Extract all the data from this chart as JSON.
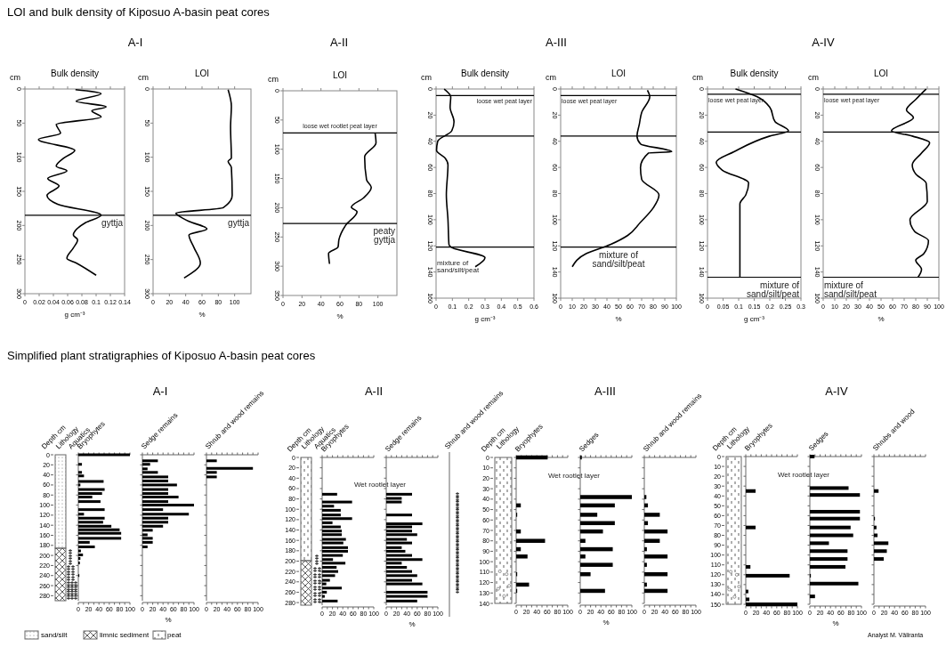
{
  "chart_data": [
    {
      "type": "other",
      "title": "LOI and bulk density of Kiposuo A-basin peat cores"
    },
    {
      "type": "other",
      "title": "A-I"
    },
    {
      "type": "other",
      "title": "A-II"
    },
    {
      "type": "other",
      "title": "A-III"
    },
    {
      "type": "other",
      "title": "A-IV"
    },
    {
      "type": "line",
      "title": "Bulk density",
      "xlabel": "g cm⁻³",
      "ylabel": "cm",
      "color": "#000000",
      "x": [
        0.071,
        0.107,
        0.072,
        0.114,
        0.094,
        0.107,
        0.044,
        0.05,
        0.019,
        0.07,
        0.055,
        0.044,
        0.059,
        0.032,
        0.048,
        0.031,
        0.046,
        0.107,
        0.085,
        0.068,
        0.074,
        0.068,
        0.059,
        0.072,
        0.1
      ],
      "values": [
        1,
        7,
        18,
        26,
        32,
        41,
        52,
        65,
        74,
        90,
        101,
        113,
        120,
        131,
        142,
        156,
        169,
        185,
        196,
        214,
        221,
        233,
        248,
        255,
        273
      ],
      "xlim": [
        0,
        0.14
      ],
      "xticks": [
        0,
        0.02,
        0.04,
        0.06,
        0.08,
        0.1,
        0.12,
        0.14
      ],
      "ylim": [
        300,
        0
      ],
      "yticks": [
        0,
        50,
        100,
        150,
        200,
        250,
        300
      ],
      "ref_lines": [
        {
          "axis": "y",
          "value": 185,
          "label": "gyttja"
        }
      ]
    },
    {
      "type": "line",
      "title": "LOI",
      "xlabel": "%",
      "ylabel": "cm",
      "color": "#000000",
      "x": [
        92,
        96,
        95,
        96,
        92,
        96,
        97,
        86,
        28,
        33,
        44,
        66,
        44,
        50,
        58,
        38
      ],
      "values": [
        1,
        25,
        56,
        101,
        106,
        115,
        156,
        174,
        182,
        187,
        194,
        205,
        214,
        232,
        255,
        277
      ],
      "xlim": [
        0,
        120
      ],
      "xticks": [
        0,
        20,
        40,
        60,
        80,
        100
      ],
      "ylim": [
        300,
        0
      ],
      "yticks": [
        0,
        50,
        100,
        150,
        200,
        250,
        300
      ],
      "ref_lines": [
        {
          "axis": "y",
          "value": 185,
          "label": "gyttja"
        }
      ]
    },
    {
      "type": "line",
      "title": "LOI",
      "xlabel": "%",
      "ylabel": "cm",
      "color": "#000000",
      "x": [
        97,
        98,
        86,
        88,
        93,
        85,
        72,
        78,
        66,
        59,
        58,
        48,
        49
      ],
      "values": [
        72,
        89,
        113,
        152,
        165,
        183,
        199,
        207,
        230,
        254,
        267,
        278,
        296
      ],
      "xlim": [
        0,
        120
      ],
      "xticks": [
        0,
        20,
        40,
        60,
        80,
        100
      ],
      "ylim": [
        350,
        0
      ],
      "yticks": [
        0,
        50,
        100,
        150,
        200,
        250,
        300,
        350
      ],
      "ref_lines": [
        {
          "axis": "y",
          "value": 72,
          "label": "loose wet rootlet peat layer"
        },
        {
          "axis": "y",
          "value": 227,
          "label": "peaty gyttja"
        }
      ]
    },
    {
      "type": "line",
      "title": "Bulk density",
      "xlabel": "g cm⁻³",
      "ylabel": "cm",
      "color": "#000000",
      "x": [
        0.05,
        0.09,
        0.086,
        0.11,
        0.096,
        0.01,
        0.003,
        0.056,
        0.073,
        0.063,
        0.073,
        0.079,
        0.092,
        0.3,
        0.24
      ],
      "values": [
        0,
        6,
        14,
        25,
        32,
        40,
        47,
        53,
        58,
        81,
        100,
        119,
        121,
        129,
        136
      ],
      "xlim": [
        0,
        0.6
      ],
      "xticks": [
        0,
        0.1,
        0.2,
        0.3,
        0.4,
        0.5,
        0.6
      ],
      "ylim": [
        160,
        0
      ],
      "yticks": [
        0,
        20,
        40,
        60,
        80,
        100,
        120,
        140,
        160
      ],
      "ref_lines": [
        {
          "axis": "y",
          "value": 5,
          "label": "loose wet peat layer"
        },
        {
          "axis": "y",
          "value": 36
        },
        {
          "axis": "y",
          "value": 121,
          "label": "mixture of sand/silt/peat"
        }
      ]
    },
    {
      "type": "line",
      "title": "LOI",
      "xlabel": "%",
      "ylabel": "cm",
      "color": "#000000",
      "x": [
        75,
        77,
        70,
        68,
        66,
        69,
        96,
        76,
        69,
        70,
        85,
        80,
        69,
        58,
        43,
        22,
        10
      ],
      "values": [
        1,
        6,
        18,
        27,
        36,
        42,
        48,
        49,
        60,
        69,
        81,
        91,
        102,
        112,
        119,
        126,
        136
      ],
      "xlim": [
        0,
        100
      ],
      "xticks": [
        0,
        10,
        20,
        30,
        40,
        50,
        60,
        70,
        80,
        90,
        100
      ],
      "ylim": [
        160,
        0
      ],
      "yticks": [
        0,
        20,
        40,
        60,
        80,
        100,
        120,
        140,
        160
      ],
      "ref_lines": [
        {
          "axis": "y",
          "value": 5,
          "label": "loose wet peat layer"
        },
        {
          "axis": "y",
          "value": 36
        },
        {
          "axis": "y",
          "value": 121,
          "label": "mixture of sand/silt/peat"
        }
      ]
    },
    {
      "type": "line",
      "title": "Bulk density",
      "xlabel": "g cm⁻³",
      "ylabel": "cm",
      "color": "#000000",
      "x": [
        0.09,
        0.16,
        0.2,
        0.217,
        0.26,
        0.2,
        0.085,
        0.028,
        0.047,
        0.132,
        0.123,
        0.104,
        0.104
      ],
      "values": [
        0,
        6,
        14,
        25,
        32,
        36,
        48,
        56,
        62,
        72,
        81,
        88,
        144
      ],
      "xlim": [
        0,
        0.3
      ],
      "xticks": [
        0,
        0.05,
        0.1,
        0.15,
        0.2,
        0.25,
        0.3
      ],
      "ylim": [
        160,
        0
      ],
      "yticks": [
        0,
        20,
        40,
        60,
        80,
        100,
        120,
        140,
        160
      ],
      "ref_lines": [
        {
          "axis": "y",
          "value": 4,
          "label": "loose wet peat layer"
        },
        {
          "axis": "y",
          "value": 33
        },
        {
          "axis": "y",
          "value": 144,
          "label": "mixture of sand/silt/peat"
        }
      ]
    },
    {
      "type": "line",
      "title": "LOI",
      "xlabel": "%",
      "ylabel": "cm",
      "color": "#000000",
      "x": [
        89,
        80,
        72,
        78,
        59,
        77,
        92,
        85,
        77,
        80,
        89,
        90,
        75,
        79,
        91,
        87,
        80,
        85,
        82
      ],
      "values": [
        0,
        8,
        16,
        22,
        32,
        36,
        41,
        49,
        58,
        65,
        72,
        86,
        100,
        109,
        116,
        126,
        131,
        138,
        144
      ],
      "xlim": [
        0,
        100
      ],
      "xticks": [
        0,
        10,
        20,
        30,
        40,
        50,
        60,
        70,
        80,
        90,
        100
      ],
      "ylim": [
        160,
        0
      ],
      "yticks": [
        0,
        20,
        40,
        60,
        80,
        100,
        120,
        140,
        160
      ],
      "ref_lines": [
        {
          "axis": "y",
          "value": 4,
          "label": "loose wet peat layer"
        },
        {
          "axis": "y",
          "value": 33
        },
        {
          "axis": "y",
          "value": 144,
          "label": "mixture of sand/silt/peat"
        }
      ]
    },
    {
      "type": "other",
      "title": "Simplified plant stratigraphies of Kiposuo A-basin peat cores"
    },
    {
      "type": "other",
      "title": "A-I"
    },
    {
      "type": "other",
      "title": "A-II"
    },
    {
      "type": "other",
      "title": "A-III"
    },
    {
      "type": "other",
      "title": "A-IV"
    },
    {
      "type": "other",
      "annotations": [
        "Lithology",
        "Aquatics"
      ]
    },
    {
      "type": "bar",
      "orientation": "horizontal",
      "title": "Bryophytes",
      "ylabel": "Depth cm",
      "color": "#000000",
      "x": [
        0,
        19,
        35,
        42,
        53,
        60,
        69,
        77,
        84,
        93,
        109,
        118,
        126,
        134,
        142,
        149,
        156,
        166,
        174,
        183,
        191,
        199,
        206,
        215,
        240
      ],
      "values": [
        100,
        7,
        7,
        11,
        49,
        4,
        51,
        46,
        27,
        43,
        51,
        11,
        51,
        48,
        64,
        80,
        83,
        83,
        22,
        32,
        5,
        9,
        4,
        3,
        2
      ],
      "xlim": [
        0,
        100
      ],
      "xticks": [
        0,
        {
          "value": 10,
          "label": null
        },
        20,
        {
          "value": 30,
          "label": null
        },
        40,
        {
          "value": 50,
          "label": null
        },
        60,
        {
          "value": 70,
          "label": null
        },
        80,
        {
          "value": 90,
          "label": null
        },
        100
      ],
      "ylim": [
        290,
        0
      ],
      "yticks": [
        0,
        20,
        40,
        60,
        80,
        100,
        120,
        140,
        160,
        180,
        200,
        220,
        240,
        260,
        280
      ]
    },
    {
      "type": "bar",
      "orientation": "horizontal",
      "title": "Sedge remains",
      "xlabel": "%",
      "tick_labels": "x",
      "yticks": [
        0,
        20,
        40,
        60,
        80,
        100,
        120,
        140,
        160,
        180,
        200,
        220,
        240,
        260,
        280
      ],
      "color": "#000000",
      "x": [
        12,
        19,
        28,
        35,
        44,
        52,
        60,
        69,
        77,
        84,
        93,
        100,
        109,
        118,
        126,
        134,
        142,
        150,
        159,
        166,
        174,
        183
      ],
      "values": [
        30,
        15,
        10,
        30,
        50,
        50,
        67,
        50,
        50,
        70,
        50,
        100,
        40,
        90,
        50,
        50,
        40,
        20,
        10,
        20,
        20,
        10
      ],
      "xlim": [
        0,
        100
      ],
      "xticks": [
        0,
        {
          "value": 10,
          "label": null
        },
        20,
        {
          "value": 30,
          "label": null
        },
        40,
        {
          "value": 50,
          "label": null
        },
        60,
        {
          "value": 70,
          "label": null
        },
        80,
        {
          "value": 90,
          "label": null
        },
        100
      ],
      "ylim": [
        290,
        0
      ]
    },
    {
      "type": "bar",
      "orientation": "horizontal",
      "title": "Shrub and wood remains",
      "tick_labels": "x",
      "yticks": [
        0,
        20,
        40,
        60,
        80,
        100,
        120,
        140,
        160,
        180,
        200,
        220,
        240,
        260,
        280
      ],
      "color": "#000000",
      "x": [
        12,
        27,
        35,
        44
      ],
      "values": [
        20,
        90,
        20,
        20
      ],
      "xlim": [
        0,
        100
      ],
      "xticks": [
        0,
        {
          "value": 10,
          "label": null
        },
        20,
        {
          "value": 30,
          "label": null
        },
        40,
        {
          "value": 50,
          "label": null
        },
        60,
        {
          "value": 70,
          "label": null
        },
        80,
        {
          "value": 90,
          "label": null
        },
        100
      ],
      "ylim": [
        290,
        0
      ]
    },
    {
      "type": "other",
      "annotations": [
        "Lithology",
        "Aquatics",
        "Shrub and wood remains"
      ]
    },
    {
      "type": "bar",
      "orientation": "horizontal",
      "title": "Bryophytes",
      "ylabel": "Depth cm",
      "annotations": [
        "Wet rootlet layer"
      ],
      "color": "#000000",
      "x": [
        71,
        86,
        94,
        102,
        111,
        118,
        126,
        134,
        142,
        149,
        158,
        165,
        174,
        181,
        189,
        197,
        204,
        212,
        220,
        228,
        237,
        244,
        252,
        260,
        268,
        277
      ],
      "values": [
        29,
        58,
        23,
        36,
        36,
        58,
        20,
        36,
        38,
        38,
        46,
        41,
        50,
        50,
        40,
        21,
        45,
        28,
        31,
        25,
        15,
        8,
        38,
        9,
        5,
        30
      ],
      "xlim": [
        0,
        100
      ],
      "xticks": [
        0,
        {
          "value": 10,
          "label": null
        },
        20,
        {
          "value": 30,
          "label": null
        },
        40,
        {
          "value": 50,
          "label": null
        },
        60,
        {
          "value": 70,
          "label": null
        },
        80,
        {
          "value": 90,
          "label": null
        },
        100
      ],
      "ylim": [
        285,
        0
      ],
      "yticks": [
        0,
        20,
        40,
        60,
        80,
        100,
        120,
        140,
        160,
        180,
        200,
        220,
        240,
        260,
        280
      ]
    },
    {
      "type": "bar",
      "orientation": "horizontal",
      "title": "Sedge remains",
      "xlabel": "%",
      "tick_labels": "x",
      "yticks": [
        0,
        20,
        40,
        60,
        80,
        100,
        120,
        140,
        160,
        180,
        200,
        220,
        240,
        260,
        280
      ],
      "color": "#000000",
      "x": [
        71,
        79,
        86,
        111,
        128,
        134,
        142,
        149,
        158,
        165,
        174,
        181,
        189,
        197,
        204,
        212,
        220,
        228,
        237,
        244,
        260,
        268,
        277
      ],
      "values": [
        50,
        30,
        30,
        50,
        70,
        50,
        50,
        60,
        40,
        50,
        30,
        37,
        50,
        70,
        30,
        40,
        50,
        60,
        50,
        70,
        80,
        80,
        60
      ],
      "xlim": [
        0,
        100
      ],
      "xticks": [
        0,
        {
          "value": 10,
          "label": null
        },
        20,
        {
          "value": 30,
          "label": null
        },
        40,
        {
          "value": 50,
          "label": null
        },
        60,
        {
          "value": 70,
          "label": null
        },
        80,
        {
          "value": 90,
          "label": null
        },
        100
      ],
      "ylim": [
        285,
        0
      ]
    },
    {
      "type": "other",
      "annotations": [
        "Lithology"
      ]
    },
    {
      "type": "bar",
      "orientation": "horizontal",
      "title": "Bryophytes",
      "ylabel": "Depth cm",
      "annotations": [
        "Wet rootlet layer"
      ],
      "color": "#000000",
      "x": [
        0,
        46,
        55,
        71,
        80,
        88,
        95,
        112,
        122,
        128
      ],
      "values": [
        61,
        9,
        2,
        9,
        56,
        9,
        22,
        2,
        25,
        2
      ],
      "xlim": [
        0,
        100
      ],
      "xticks": [
        0,
        {
          "value": 10,
          "label": null
        },
        20,
        {
          "value": 30,
          "label": null
        },
        40,
        {
          "value": 50,
          "label": null
        },
        60,
        {
          "value": 70,
          "label": null
        },
        80,
        {
          "value": 90,
          "label": null
        },
        100
      ],
      "ylim": [
        140,
        0
      ],
      "yticks": [
        0,
        10,
        20,
        30,
        40,
        50,
        60,
        70,
        80,
        90,
        100,
        110,
        120,
        130,
        140
      ]
    },
    {
      "type": "bar",
      "orientation": "horizontal",
      "title": "Sedges",
      "xlabel": "%",
      "tick_labels": "x",
      "yticks": [
        0,
        10,
        20,
        30,
        40,
        50,
        60,
        70,
        80,
        90,
        100,
        110,
        120,
        130,
        140
      ],
      "color": "#000000",
      "x": [
        0,
        38,
        46,
        55,
        63,
        71,
        80,
        88,
        95,
        103,
        112,
        128
      ],
      "values": [
        3,
        100,
        67,
        33,
        67,
        44,
        10,
        63,
        10,
        63,
        20,
        48
      ],
      "xlim": [
        0,
        100
      ],
      "xticks": [
        0,
        {
          "value": 10,
          "label": null
        },
        20,
        {
          "value": 30,
          "label": null
        },
        40,
        {
          "value": 50,
          "label": null
        },
        60,
        {
          "value": 70,
          "label": null
        },
        80,
        {
          "value": 90,
          "label": null
        },
        100
      ],
      "ylim": [
        140,
        0
      ]
    },
    {
      "type": "bar",
      "orientation": "horizontal",
      "title": "Shrub and wood remains",
      "tick_labels": "x",
      "yticks": [
        0,
        10,
        20,
        30,
        40,
        50,
        60,
        70,
        80,
        90,
        100,
        110,
        120,
        130,
        140
      ],
      "color": "#000000",
      "x": [
        38,
        46,
        55,
        63,
        71,
        80,
        88,
        95,
        103,
        112,
        122,
        128
      ],
      "values": [
        4,
        7,
        30,
        7,
        45,
        30,
        5,
        45,
        5,
        45,
        5,
        45
      ],
      "xlim": [
        0,
        100
      ],
      "xticks": [
        0,
        {
          "value": 10,
          "label": null
        },
        20,
        {
          "value": 30,
          "label": null
        },
        40,
        {
          "value": 50,
          "label": null
        },
        60,
        {
          "value": 70,
          "label": null
        },
        80,
        {
          "value": 90,
          "label": null
        },
        100
      ],
      "ylim": [
        140,
        0
      ]
    },
    {
      "type": "other",
      "annotations": [
        "Lithology"
      ]
    },
    {
      "type": "bar",
      "orientation": "horizontal",
      "title": "Bryophytes",
      "ylabel": "Depth cm",
      "annotations": [
        "Wet rootlet layer"
      ],
      "color": "#000000",
      "x": [
        35,
        72,
        112,
        121,
        137,
        145,
        150
      ],
      "values": [
        19,
        19,
        9,
        85,
        5,
        7,
        100
      ],
      "xlim": [
        0,
        100
      ],
      "xticks": [
        0,
        {
          "value": 10,
          "label": null
        },
        20,
        {
          "value": 30,
          "label": null
        },
        40,
        {
          "value": 50,
          "label": null
        },
        60,
        {
          "value": 70,
          "label": null
        },
        80,
        {
          "value": 90,
          "label": null
        },
        100
      ],
      "ylim": [
        150,
        0
      ],
      "yticks": [
        0,
        10,
        20,
        30,
        40,
        50,
        60,
        70,
        80,
        90,
        100,
        110,
        120,
        130,
        140,
        150
      ]
    },
    {
      "type": "bar",
      "orientation": "horizontal",
      "title": "Sedges",
      "xlabel": "%",
      "tick_labels": "x",
      "yticks": [
        0,
        10,
        20,
        30,
        40,
        50,
        60,
        70,
        80,
        90,
        100,
        110,
        120,
        130,
        140,
        150
      ],
      "color": "#000000",
      "x": [
        0,
        32,
        39,
        56,
        63,
        72,
        80,
        88,
        96,
        104,
        112,
        121,
        129,
        142
      ],
      "values": [
        9,
        75,
        97,
        97,
        97,
        79,
        84,
        37,
        73,
        73,
        69,
        2,
        94,
        10
      ],
      "xlim": [
        0,
        100
      ],
      "xticks": [
        0,
        {
          "value": 10,
          "label": null
        },
        20,
        {
          "value": 30,
          "label": null
        },
        40,
        {
          "value": 50,
          "label": null
        },
        60,
        {
          "value": 70,
          "label": null
        },
        80,
        {
          "value": 90,
          "label": null
        },
        100
      ],
      "ylim": [
        150,
        0
      ]
    },
    {
      "type": "bar",
      "orientation": "horizontal",
      "title": "Shrubs and wood",
      "tick_labels": "x",
      "yticks": [
        0,
        10,
        20,
        30,
        40,
        50,
        60,
        70,
        80,
        90,
        100,
        110,
        120,
        130,
        140,
        150
      ],
      "color": "#000000",
      "x": [
        35,
        63,
        72,
        80,
        88,
        96,
        104
      ],
      "values": [
        9,
        2,
        5,
        7,
        28,
        25,
        19
      ],
      "xlim": [
        0,
        100
      ],
      "xticks": [
        0,
        {
          "value": 10,
          "label": null
        },
        20,
        {
          "value": 30,
          "label": null
        },
        40,
        {
          "value": 50,
          "label": null
        },
        60,
        {
          "value": 70,
          "label": null
        },
        80,
        {
          "value": 90,
          "label": null
        },
        100
      ],
      "ylim": [
        150,
        0
      ]
    },
    {
      "type": "other",
      "annotations": [
        "sand/silt",
        "limnic sediment",
        "peat",
        "Analyst M. Väliranta"
      ]
    }
  ]
}
